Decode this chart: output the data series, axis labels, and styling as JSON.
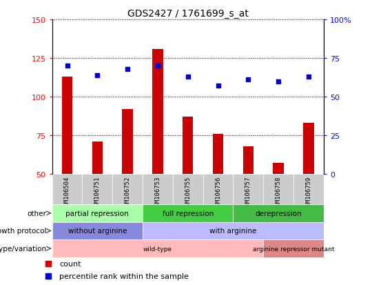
{
  "title": "GDS2427 / 1761699_s_at",
  "samples": [
    "GSM106504",
    "GSM106751",
    "GSM106752",
    "GSM106753",
    "GSM106755",
    "GSM106756",
    "GSM106757",
    "GSM106758",
    "GSM106759"
  ],
  "counts": [
    113,
    71,
    92,
    131,
    87,
    76,
    68,
    57,
    83
  ],
  "percentile_ranks": [
    120,
    114,
    118,
    120,
    113,
    107,
    111,
    110,
    113
  ],
  "count_base": 50,
  "ylim_left": [
    50,
    150
  ],
  "ylim_right": [
    0,
    100
  ],
  "yticks_left": [
    50,
    75,
    100,
    125,
    150
  ],
  "yticks_right": [
    0,
    25,
    50,
    75,
    100
  ],
  "ytick_labels_right": [
    "0",
    "25",
    "50",
    "75",
    "100%"
  ],
  "bar_color": "#cc0000",
  "dot_color": "#0000cc",
  "bar_width": 0.35,
  "tick_label_gray": "#cccccc",
  "annotations": {
    "other": {
      "label": "other",
      "groups": [
        {
          "text": "partial repression",
          "start": 0,
          "end": 3,
          "color": "#aaffaa"
        },
        {
          "text": "full repression",
          "start": 3,
          "end": 6,
          "color": "#44cc44"
        },
        {
          "text": "derepression",
          "start": 6,
          "end": 9,
          "color": "#44bb44"
        }
      ]
    },
    "growth_protocol": {
      "label": "growth protocol",
      "groups": [
        {
          "text": "without arginine",
          "start": 0,
          "end": 3,
          "color": "#8888dd"
        },
        {
          "text": "with arginine",
          "start": 3,
          "end": 9,
          "color": "#bbbbff"
        }
      ]
    },
    "genotype_variation": {
      "label": "genotype/variation",
      "groups": [
        {
          "text": "wild-type",
          "start": 0,
          "end": 7,
          "color": "#ffbbbb"
        },
        {
          "text": "arginine repressor mutant",
          "start": 7,
          "end": 9,
          "color": "#dd8888"
        }
      ]
    }
  },
  "legend": [
    {
      "label": "count",
      "color": "#cc0000"
    },
    {
      "label": "percentile rank within the sample",
      "color": "#0000cc"
    }
  ]
}
